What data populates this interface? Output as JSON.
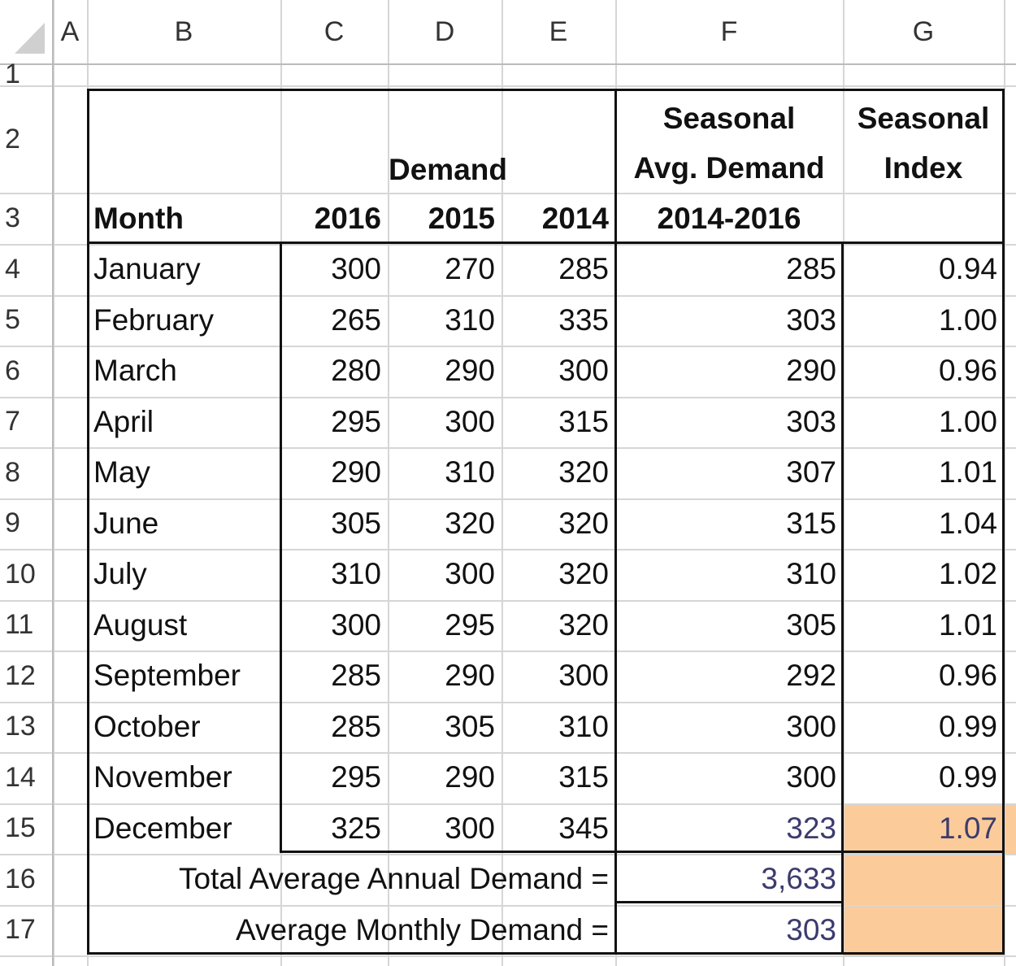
{
  "column_headers": [
    "A",
    "B",
    "C",
    "D",
    "E",
    "F",
    "G"
  ],
  "row_numbers": [
    "1",
    "2",
    "3",
    "4",
    "5",
    "6",
    "7",
    "8",
    "9",
    "10",
    "11",
    "12",
    "13",
    "14",
    "15",
    "16",
    "17"
  ],
  "table": {
    "header": {
      "demand": "Demand",
      "seasonal_avg": [
        "Seasonal",
        "Avg. Demand"
      ],
      "seasonal_index": [
        "Seasonal",
        "Index"
      ],
      "month": "Month",
      "years": [
        "2016",
        "2015",
        "2014"
      ],
      "range": "2014-2016"
    },
    "rows": [
      [
        "January",
        "300",
        "270",
        "285",
        "285",
        "0.94"
      ],
      [
        "February",
        "265",
        "310",
        "335",
        "303",
        "1.00"
      ],
      [
        "March",
        "280",
        "290",
        "300",
        "290",
        "0.96"
      ],
      [
        "April",
        "295",
        "300",
        "315",
        "303",
        "1.00"
      ],
      [
        "May",
        "290",
        "310",
        "320",
        "307",
        "1.01"
      ],
      [
        "June",
        "305",
        "320",
        "320",
        "315",
        "1.04"
      ],
      [
        "July",
        "310",
        "300",
        "320",
        "310",
        "1.02"
      ],
      [
        "August",
        "300",
        "295",
        "320",
        "305",
        "1.01"
      ],
      [
        "September",
        "285",
        "290",
        "300",
        "292",
        "0.96"
      ],
      [
        "October",
        "285",
        "305",
        "310",
        "300",
        "0.99"
      ],
      [
        "November",
        "295",
        "290",
        "315",
        "300",
        "0.99"
      ],
      [
        "December",
        "325",
        "300",
        "345",
        "323",
        "1.07"
      ]
    ]
  },
  "totals": [
    {
      "label": "Total Average Annual Demand =",
      "value": "3,633"
    },
    {
      "label": "Average Monthly Demand =",
      "value": "303"
    }
  ]
}
